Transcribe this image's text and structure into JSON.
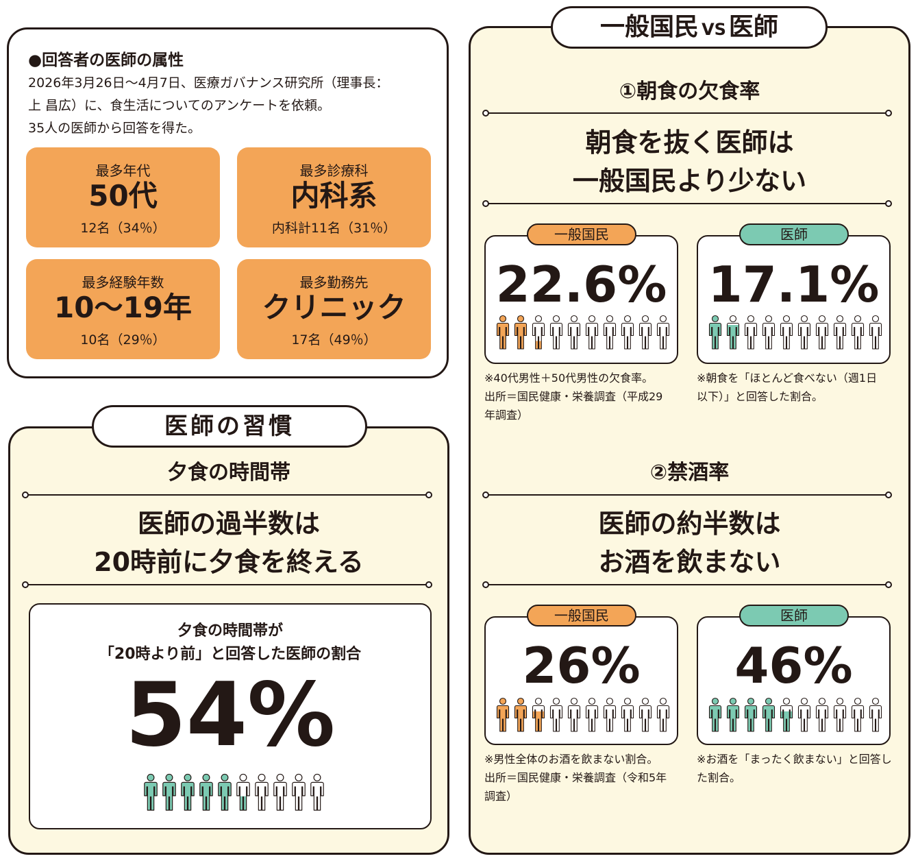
{
  "respondents": {
    "heading": "●回答者の医師の属性",
    "desc": [
      "2026年3月26日～4月7日、医療ガバナンス研究所（理事長：",
      "上 昌広）に、食生活についてのアンケートを依頼。",
      "35人の医師から回答を得た。"
    ],
    "stats": [
      {
        "label": "最多年代",
        "value": "50代",
        "sub": "12名（34％）"
      },
      {
        "label": "最多診療科",
        "value": "内科系",
        "sub": "内科計11名（31％）"
      },
      {
        "label": "最多経験年数",
        "value": "10～19年",
        "sub": "10名（29％）"
      },
      {
        "label": "最多勤務先",
        "value": "クリニック",
        "sub": "17名（49％）"
      }
    ]
  },
  "habits": {
    "pill": "医師の習慣",
    "subtitle": "夕食の時間帯",
    "title_lines": [
      "医師の過半数は",
      "20時前に夕食を終える"
    ],
    "card_caption_lines": [
      "夕食の時間帯が",
      "「20時より前」と回答した医師の割合"
    ],
    "percent": "54%",
    "fill_fraction": 0.54
  },
  "versus": {
    "pill_a": "一般国民",
    "pill_vs": "VS",
    "pill_b": "医師",
    "sections": [
      {
        "subtitle": "①朝食の欠食率",
        "title_lines": [
          "朝食を抜く医師は",
          "一般国民より少ない"
        ],
        "cards": [
          {
            "tag": "一般国民",
            "percent": "22.6%",
            "fill_fraction": 0.226,
            "note_lines": [
              "※40代男性＋50代男性の欠食率。",
              "出所＝国民健康・栄養調査（平成29",
              "年調査）"
            ]
          },
          {
            "tag": "医師",
            "percent": "17.1%",
            "fill_fraction": 0.171,
            "note_lines": [
              "※朝食を「ほとんど食べない（週1日",
              "以下）」と回答した割合。"
            ]
          }
        ]
      },
      {
        "subtitle": "②禁酒率",
        "title_lines": [
          "医師の約半数は",
          "お酒を飲まない"
        ],
        "cards": [
          {
            "tag": "一般国民",
            "percent": "26%",
            "fill_fraction": 0.26,
            "note_lines": [
              "※男性全体のお酒を飲まない割合。",
              "出所＝国民健康・栄養調査（令和5年",
              "調査）"
            ]
          },
          {
            "tag": "医師",
            "percent": "46%",
            "fill_fraction": 0.46,
            "note_lines": [
              "※お酒を「まったく飲まない」と回答し",
              "た割合。"
            ]
          }
        ]
      }
    ]
  },
  "colors": {
    "orange": "#f3a557",
    "green": "#7ccab2",
    "cream": "#fdf8e1",
    "ink": "#231815"
  },
  "icons": {
    "person": "person-icon"
  }
}
